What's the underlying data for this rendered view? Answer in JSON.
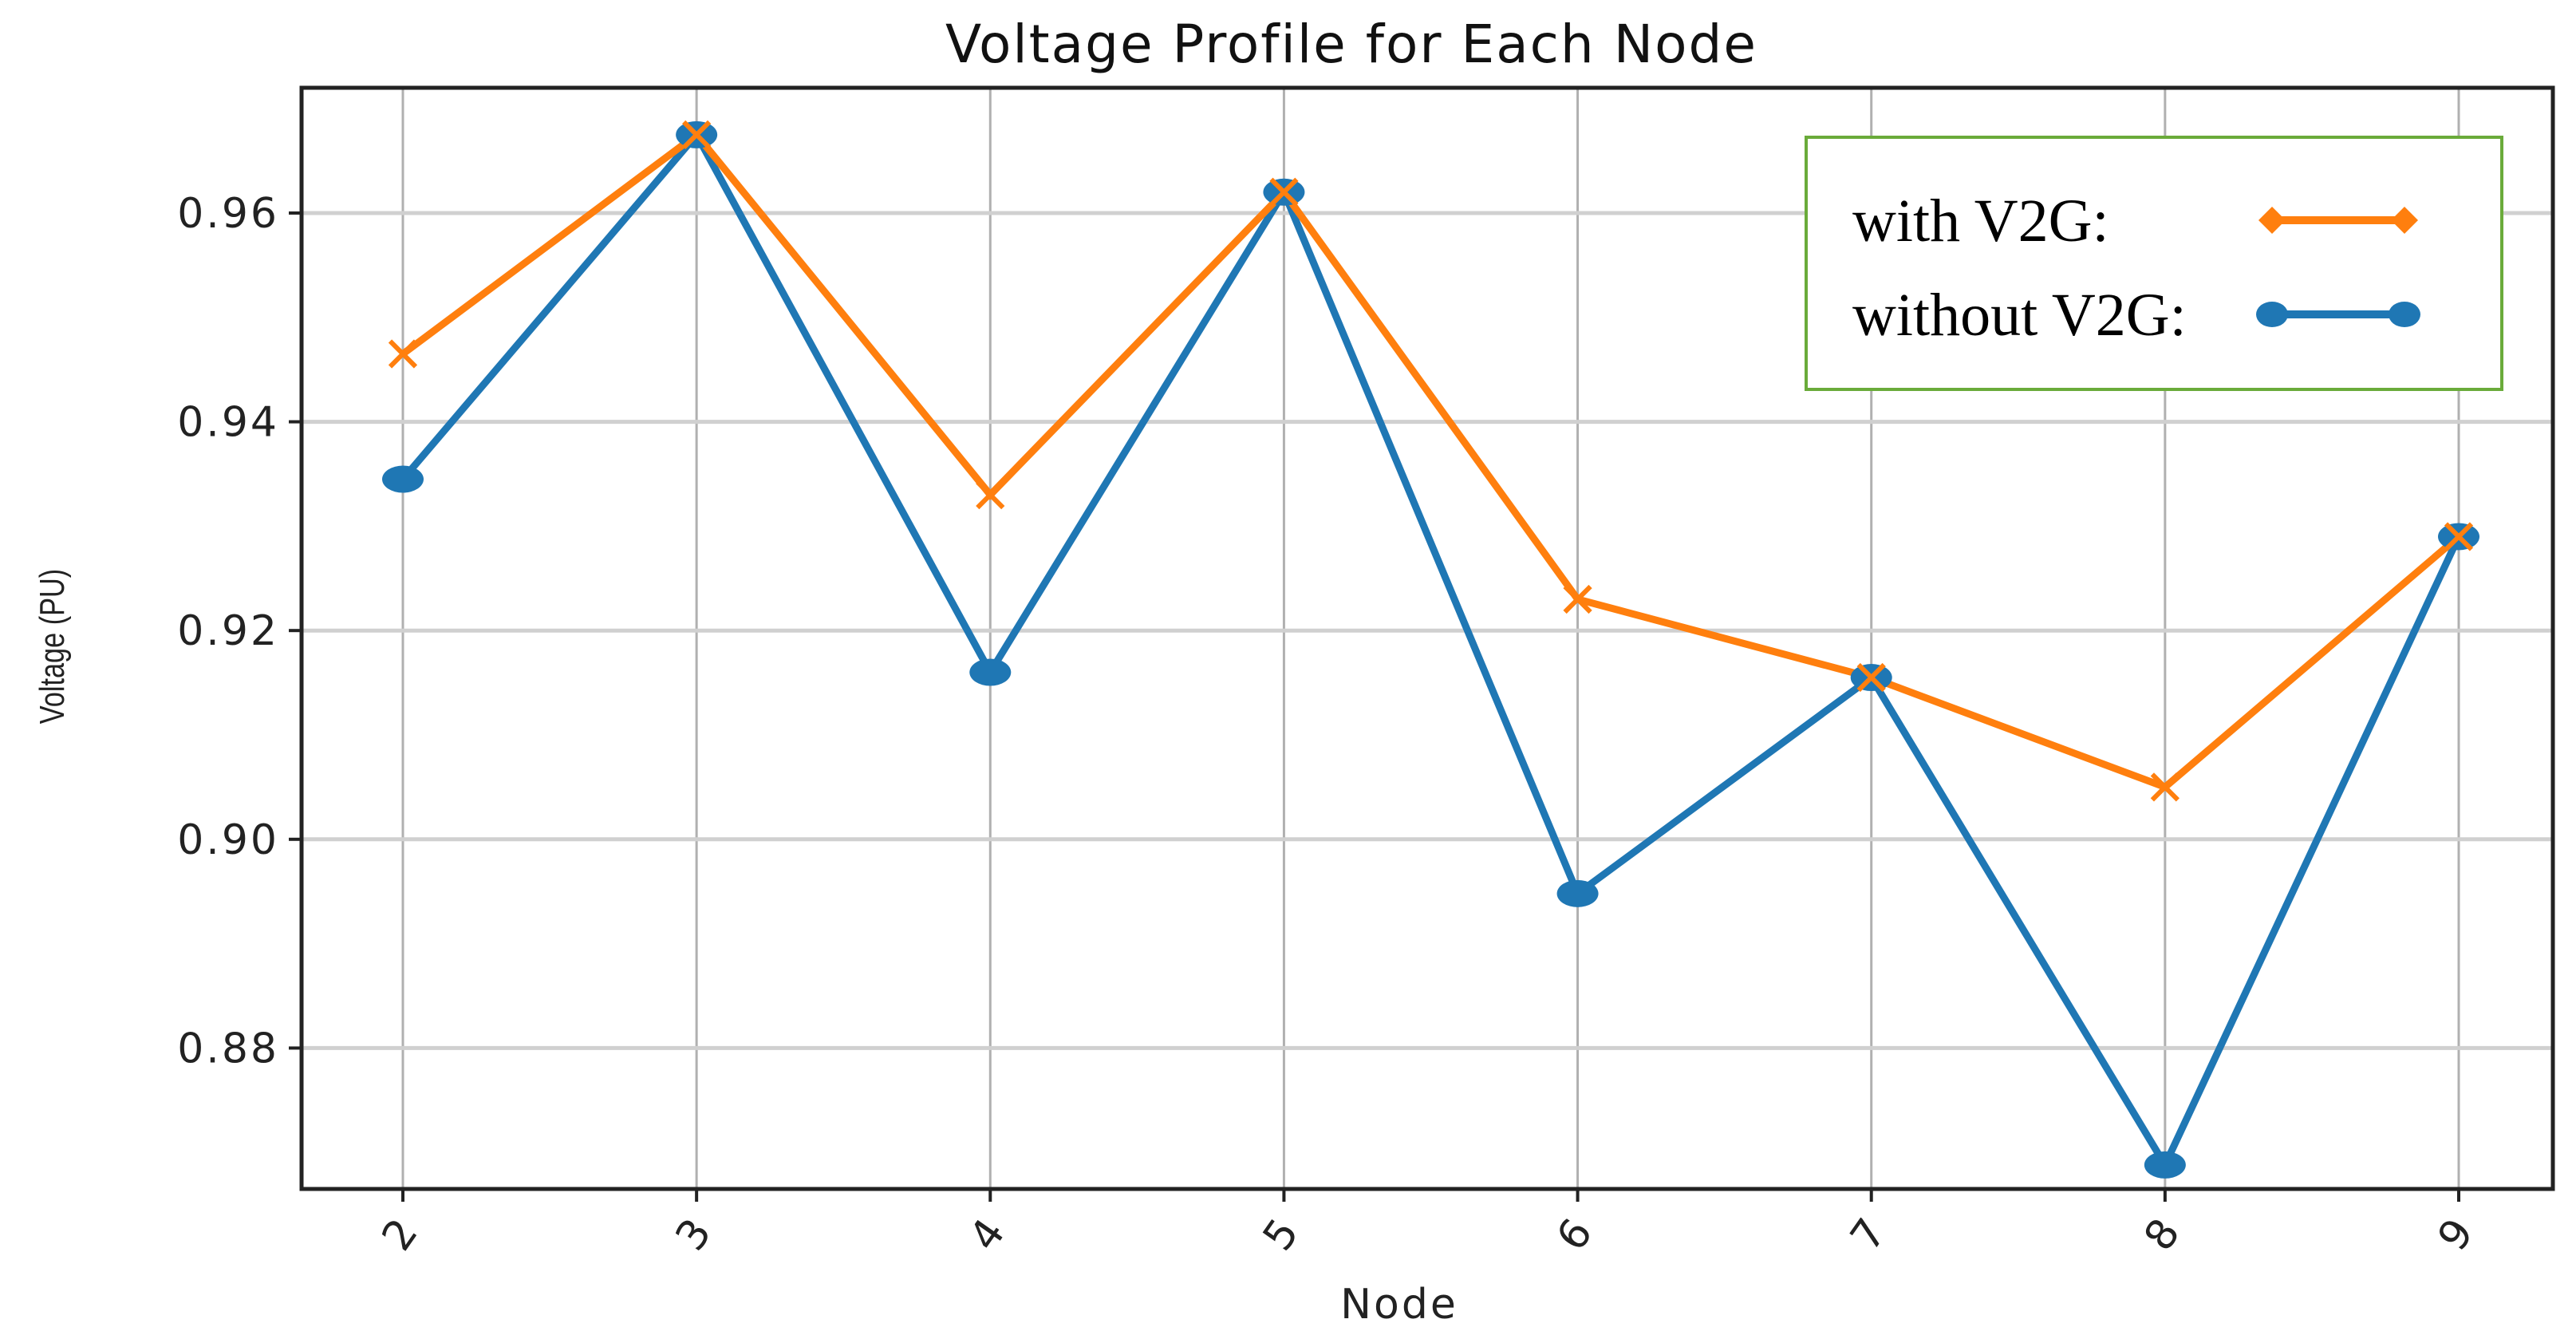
{
  "chart_data": {
    "type": "line",
    "title": "Voltage Profile for Each Node",
    "xlabel": "Node",
    "ylabel": "Voltage (PU)",
    "categories": [
      "2",
      "3",
      "4",
      "5",
      "6",
      "7",
      "8",
      "9"
    ],
    "ylim": [
      0.8665,
      0.972
    ],
    "yticks": [
      "0.88",
      "0.90",
      "0.92",
      "0.94",
      "0.96"
    ],
    "grid": true,
    "legend_position": "top-right",
    "series": [
      {
        "name": "with V2G:",
        "color": "#ff7f0e",
        "marker": "x",
        "values": [
          0.9465,
          0.9675,
          0.933,
          0.962,
          0.923,
          0.9155,
          0.905,
          0.929
        ]
      },
      {
        "name": "without V2G:",
        "color": "#1f77b4",
        "marker": "circle",
        "values": [
          0.9345,
          0.9675,
          0.916,
          0.962,
          0.8948,
          0.9155,
          0.8688,
          0.929
        ]
      }
    ]
  }
}
